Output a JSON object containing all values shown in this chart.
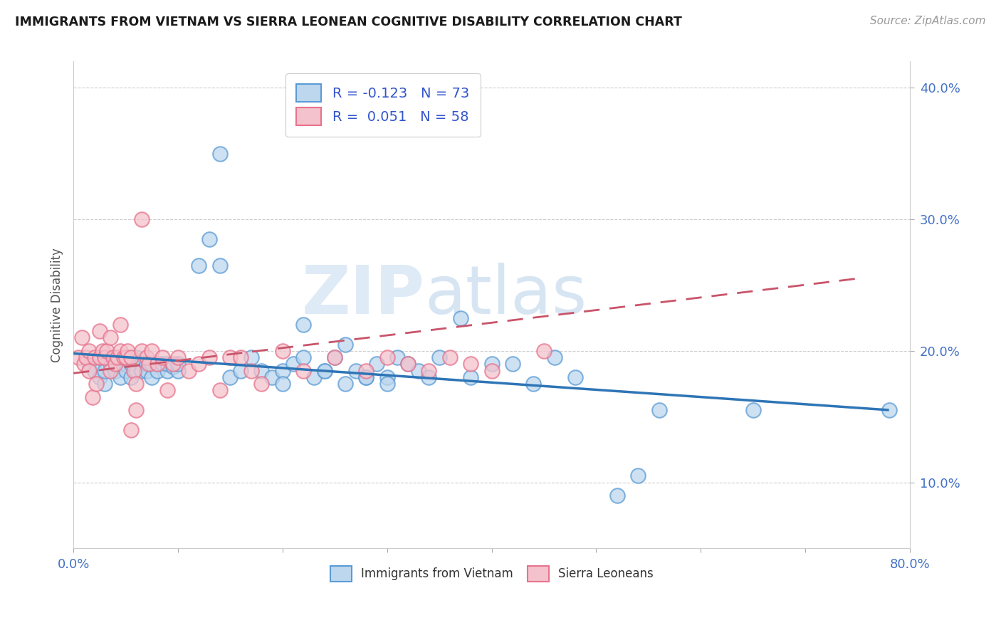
{
  "title": "IMMIGRANTS FROM VIETNAM VS SIERRA LEONEAN COGNITIVE DISABILITY CORRELATION CHART",
  "source": "Source: ZipAtlas.com",
  "ylabel": "Cognitive Disability",
  "xlabel": "",
  "xlim": [
    0.0,
    0.8
  ],
  "ylim": [
    0.05,
    0.42
  ],
  "yticks": [
    0.1,
    0.2,
    0.3,
    0.4
  ],
  "ytick_labels": [
    "10.0%",
    "20.0%",
    "30.0%",
    "40.0%"
  ],
  "xticks": [
    0.0,
    0.1,
    0.2,
    0.3,
    0.4,
    0.5,
    0.6,
    0.7,
    0.8
  ],
  "xtick_labels": [
    "0.0%",
    "",
    "",
    "",
    "",
    "",
    "",
    "",
    "80.0%"
  ],
  "color_blue": "#5b9bd5",
  "color_blue_light": "#bdd7ee",
  "color_pink": "#e8728c",
  "color_pink_light": "#f4c2cc",
  "color_line_blue": "#2e75b6",
  "color_line_pink": "#c9546a",
  "watermark_zip": "ZIP",
  "watermark_atlas": "atlas",
  "background_color": "#ffffff",
  "grid_color": "#cccccc",
  "tick_color": "#4472c4",
  "scatter_blue_x": [
    0.015,
    0.02,
    0.025,
    0.03,
    0.03,
    0.035,
    0.04,
    0.04,
    0.045,
    0.045,
    0.05,
    0.05,
    0.055,
    0.055,
    0.06,
    0.06,
    0.065,
    0.065,
    0.07,
    0.07,
    0.075,
    0.075,
    0.08,
    0.08,
    0.085,
    0.09,
    0.09,
    0.095,
    0.1,
    0.1,
    0.12,
    0.13,
    0.14,
    0.14,
    0.15,
    0.16,
    0.17,
    0.18,
    0.19,
    0.2,
    0.21,
    0.22,
    0.23,
    0.24,
    0.25,
    0.26,
    0.27,
    0.28,
    0.29,
    0.3,
    0.31,
    0.32,
    0.33,
    0.34,
    0.35,
    0.37,
    0.38,
    0.4,
    0.42,
    0.44,
    0.46,
    0.48,
    0.2,
    0.22,
    0.24,
    0.26,
    0.28,
    0.3,
    0.52,
    0.54,
    0.56,
    0.65,
    0.78
  ],
  "scatter_blue_y": [
    0.19,
    0.185,
    0.18,
    0.175,
    0.185,
    0.19,
    0.195,
    0.185,
    0.18,
    0.19,
    0.185,
    0.195,
    0.19,
    0.18,
    0.185,
    0.195,
    0.19,
    0.185,
    0.19,
    0.185,
    0.18,
    0.19,
    0.19,
    0.185,
    0.19,
    0.185,
    0.19,
    0.188,
    0.185,
    0.19,
    0.265,
    0.285,
    0.265,
    0.35,
    0.18,
    0.185,
    0.195,
    0.185,
    0.18,
    0.185,
    0.19,
    0.22,
    0.18,
    0.185,
    0.195,
    0.205,
    0.185,
    0.18,
    0.19,
    0.18,
    0.195,
    0.19,
    0.185,
    0.18,
    0.195,
    0.225,
    0.18,
    0.19,
    0.19,
    0.175,
    0.195,
    0.18,
    0.175,
    0.195,
    0.185,
    0.175,
    0.18,
    0.175,
    0.09,
    0.105,
    0.155,
    0.155,
    0.155
  ],
  "scatter_pink_x": [
    0.005,
    0.008,
    0.01,
    0.012,
    0.015,
    0.015,
    0.018,
    0.02,
    0.022,
    0.025,
    0.025,
    0.028,
    0.03,
    0.032,
    0.035,
    0.035,
    0.038,
    0.04,
    0.042,
    0.045,
    0.045,
    0.048,
    0.05,
    0.052,
    0.055,
    0.055,
    0.058,
    0.06,
    0.06,
    0.065,
    0.065,
    0.07,
    0.072,
    0.075,
    0.08,
    0.085,
    0.09,
    0.095,
    0.1,
    0.11,
    0.12,
    0.13,
    0.14,
    0.15,
    0.16,
    0.17,
    0.18,
    0.2,
    0.22,
    0.25,
    0.28,
    0.3,
    0.32,
    0.34,
    0.36,
    0.38,
    0.4,
    0.45
  ],
  "scatter_pink_y": [
    0.195,
    0.21,
    0.19,
    0.195,
    0.2,
    0.185,
    0.165,
    0.195,
    0.175,
    0.195,
    0.215,
    0.2,
    0.195,
    0.2,
    0.185,
    0.21,
    0.195,
    0.19,
    0.195,
    0.2,
    0.22,
    0.195,
    0.195,
    0.2,
    0.195,
    0.14,
    0.185,
    0.155,
    0.175,
    0.2,
    0.3,
    0.195,
    0.19,
    0.2,
    0.19,
    0.195,
    0.17,
    0.19,
    0.195,
    0.185,
    0.19,
    0.195,
    0.17,
    0.195,
    0.195,
    0.185,
    0.175,
    0.2,
    0.185,
    0.195,
    0.185,
    0.195,
    0.19,
    0.185,
    0.195,
    0.19,
    0.185,
    0.2
  ],
  "blue_line_x": [
    0.0,
    0.78
  ],
  "blue_line_y": [
    0.198,
    0.155
  ],
  "pink_line_x": [
    0.0,
    0.75
  ],
  "pink_line_y": [
    0.183,
    0.255
  ]
}
